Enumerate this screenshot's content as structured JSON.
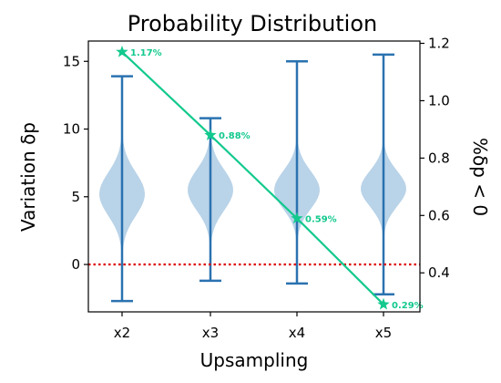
{
  "chart_data": {
    "type": "violin",
    "title": "Probability Distribution",
    "xlabel": "Upsampling",
    "ylabel_left": "Variation δp",
    "ylabel_right": "%δp < 0",
    "categories": [
      "x2",
      "x3",
      "x4",
      "x5"
    ],
    "y_left": {
      "lim": [
        -3.5,
        16.5
      ],
      "ticks": [
        0,
        5,
        10,
        15
      ]
    },
    "y_right": {
      "lim": [
        0.264,
        1.208
      ],
      "ticks": [
        "0.4",
        "0.6",
        "0.8",
        "1.0",
        "1.2"
      ]
    },
    "violins": [
      {
        "category": "x2",
        "min": -2.7,
        "max": 13.9,
        "center": 5.2,
        "spread": 1.6
      },
      {
        "category": "x3",
        "min": -1.2,
        "max": 10.8,
        "center": 5.5,
        "spread": 1.5
      },
      {
        "category": "x4",
        "min": -1.4,
        "max": 15.0,
        "center": 5.5,
        "spread": 1.4
      },
      {
        "category": "x5",
        "min": -2.2,
        "max": 15.5,
        "center": 5.6,
        "spread": 1.3
      }
    ],
    "series": [
      {
        "values": [
          1.17,
          0.88,
          0.59,
          0.29
        ],
        "labels": [
          "1.17%",
          "0.88%",
          "0.59%",
          "0.29%"
        ]
      }
    ],
    "reference_line": {
      "y": 0,
      "style": "dotted"
    },
    "colors": {
      "violin": "#b9d3e8",
      "whisker": "#2a72b0",
      "line": "#13c98e",
      "ref": "#dd0000"
    },
    "grid": false
  }
}
